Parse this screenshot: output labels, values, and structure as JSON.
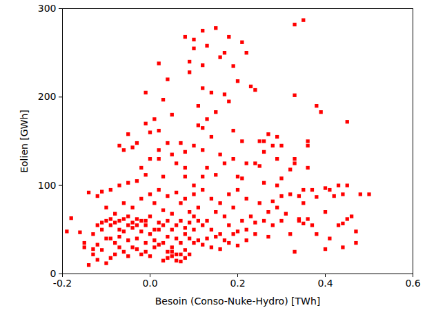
{
  "chart_data": {
    "type": "scatter",
    "x_label": "Besoin (Conso-Nuke-Hydro) [TWh]",
    "y_label": "Eolien [GWh]",
    "color": "#ff0000",
    "marker": "square",
    "xlim": [
      -0.2,
      0.6
    ],
    "ylim": [
      0,
      300
    ],
    "xticks": [
      -0.2,
      {
        "value": 0,
        "label": "0.0"
      },
      0.2,
      0.4,
      0.6
    ],
    "yticks": [
      0,
      100,
      200,
      300
    ],
    "grid": false,
    "x": [
      0.08,
      0.1,
      0.12,
      0.15,
      0.18,
      0.21,
      0.17,
      0.1,
      0.09,
      0.13,
      0.16,
      0.19,
      0.09,
      0.12,
      0.22,
      0.33,
      0.35,
      0.2,
      0.12,
      0.14,
      0.02,
      0.04,
      -0.01,
      0.03,
      0.23,
      0.24,
      0.18,
      0.17,
      0.33,
      0.38,
      0.11,
      0.15,
      0.13,
      0.11,
      0.12,
      0.05,
      0.01,
      -0.01,
      0.02,
      0.0,
      -0.05,
      -0.03,
      0.04,
      0.07,
      0.08,
      0.12,
      0.14,
      0.19,
      0.21,
      0.27,
      0.26,
      0.28,
      0.3,
      0.29,
      0.25,
      0.36,
      0.36,
      0.45,
      -0.06,
      -0.07,
      -0.04,
      0.02,
      0.1,
      0.16,
      0.05,
      0.06,
      0.0,
      0.02,
      -0.02,
      0.08,
      0.13,
      0.17,
      0.19,
      0.22,
      0.24,
      0.25,
      0.26,
      0.29,
      0.33,
      0.33,
      0.36,
      0.32,
      0.43,
      0.41,
      0.4,
      0.45,
      0.44,
      0.48,
      0.37,
      0.35,
      0.34,
      0.38,
      0.42,
      0.3,
      0.29,
      0.26,
      0.21,
      0.2,
      0.15,
      0.12,
      0.1,
      0.08,
      0.03,
      -0.01,
      -0.03,
      -0.05,
      -0.07,
      -0.09,
      -0.11,
      -0.12,
      -0.14,
      -0.18,
      -0.16,
      -0.19,
      -0.15,
      -0.14,
      -0.13,
      -0.12,
      -0.11,
      -0.1,
      -0.09,
      -0.08,
      -0.07,
      -0.06,
      -0.05,
      -0.04,
      -0.03,
      -0.02,
      -0.01,
      0.0,
      0.01,
      0.02,
      0.03,
      0.04,
      0.05,
      0.06,
      0.07,
      0.08,
      0.09,
      0.1,
      0.11,
      0.12,
      0.14,
      0.16,
      0.18,
      0.2,
      0.22,
      0.24,
      0.27,
      0.28,
      0.3,
      0.32,
      0.34,
      0.35,
      0.37,
      0.38,
      0.4,
      0.41,
      0.43,
      0.44,
      0.45,
      0.47,
      0.46,
      0.44,
      0.4,
      0.33,
      0.35,
      0.32,
      0.31,
      0.29,
      0.27,
      0.25,
      0.23,
      0.21,
      0.19,
      0.17,
      0.15,
      0.13,
      0.11,
      0.09,
      0.07,
      0.05,
      0.03,
      0.01,
      -0.01,
      -0.03,
      -0.05,
      -0.07,
      -0.09,
      -0.11,
      -0.13,
      -0.12,
      -0.1,
      -0.08,
      -0.06,
      -0.04,
      -0.02,
      0.0,
      0.02,
      0.04,
      0.06,
      0.08,
      0.1,
      0.12,
      0.14,
      0.16,
      0.18,
      0.2,
      0.22,
      0.24,
      0.26,
      0.28,
      0.3,
      -0.1,
      -0.08,
      -0.06,
      -0.04,
      -0.02,
      0.0,
      0.02,
      0.04,
      0.06,
      0.08,
      0.1,
      0.12,
      0.14,
      0.16,
      0.18,
      0.2,
      0.22,
      -0.09,
      -0.07,
      -0.05,
      -0.03,
      -0.01,
      0.01,
      0.03,
      0.05,
      0.07,
      0.09,
      0.11,
      0.13,
      0.15,
      0.17,
      0.19,
      -0.15,
      -0.13,
      -0.11,
      -0.09,
      -0.07,
      -0.06,
      -0.05,
      -0.04,
      -0.03,
      -0.02,
      -0.01,
      0.0,
      0.01,
      0.02,
      0.03,
      0.04,
      0.05,
      0.06,
      0.07,
      0.08,
      0.09,
      0.1,
      0.05,
      0.06,
      0.07,
      0.08,
      0.04,
      -0.08,
      -0.1,
      -0.12,
      0.39,
      0.5,
      0.47,
      0.36,
      0.34
    ],
    "values": [
      268,
      265,
      275,
      278,
      268,
      262,
      250,
      255,
      240,
      258,
      245,
      235,
      228,
      236,
      250,
      282,
      287,
      218,
      210,
      205,
      238,
      220,
      205,
      197,
      212,
      208,
      195,
      203,
      202,
      190,
      190,
      183,
      175,
      168,
      165,
      180,
      175,
      170,
      162,
      160,
      158,
      148,
      148,
      148,
      138,
      140,
      155,
      162,
      150,
      158,
      150,
      145,
      145,
      155,
      150,
      150,
      145,
      172,
      140,
      145,
      143,
      140,
      145,
      135,
      135,
      125,
      130,
      130,
      120,
      120,
      120,
      125,
      130,
      125,
      125,
      122,
      138,
      130,
      130,
      125,
      120,
      118,
      100,
      95,
      97,
      100,
      90,
      90,
      95,
      95,
      88,
      87,
      88,
      108,
      100,
      103,
      108,
      110,
      112,
      110,
      100,
      110,
      110,
      112,
      105,
      103,
      100,
      95,
      93,
      88,
      92,
      63,
      47,
      48,
      35,
      10,
      22,
      16,
      27,
      12,
      18,
      22,
      30,
      25,
      20,
      30,
      28,
      22,
      25,
      20,
      30,
      33,
      15,
      18,
      20,
      15,
      14,
      27,
      22,
      35,
      38,
      33,
      30,
      28,
      35,
      32,
      38,
      45,
      42,
      55,
      60,
      45,
      60,
      57,
      55,
      45,
      70,
      40,
      55,
      30,
      62,
      35,
      65,
      57,
      28,
      25,
      80,
      90,
      68,
      75,
      70,
      80,
      65,
      60,
      75,
      65,
      70,
      60,
      75,
      70,
      80,
      68,
      72,
      80,
      60,
      55,
      55,
      60,
      55,
      50,
      45,
      55,
      60,
      58,
      62,
      52,
      48,
      45,
      50,
      42,
      40,
      45,
      50,
      55,
      50,
      45,
      55,
      48,
      50,
      58,
      60,
      82,
      88,
      75,
      68,
      80,
      75,
      85,
      90,
      95,
      88,
      92,
      85,
      90,
      95,
      85,
      80,
      90,
      95,
      85,
      40,
      42,
      38,
      40,
      35,
      38,
      35,
      30,
      35,
      40,
      60,
      40,
      42,
      38,
      45,
      30,
      28,
      58,
      62,
      50,
      48,
      65,
      58,
      62,
      60,
      55,
      65,
      50,
      58,
      55,
      60,
      50,
      55,
      60,
      52,
      58,
      65,
      25,
      22,
      22,
      18,
      25,
      35,
      40,
      33,
      183,
      90,
      48,
      62,
      62
    ]
  }
}
